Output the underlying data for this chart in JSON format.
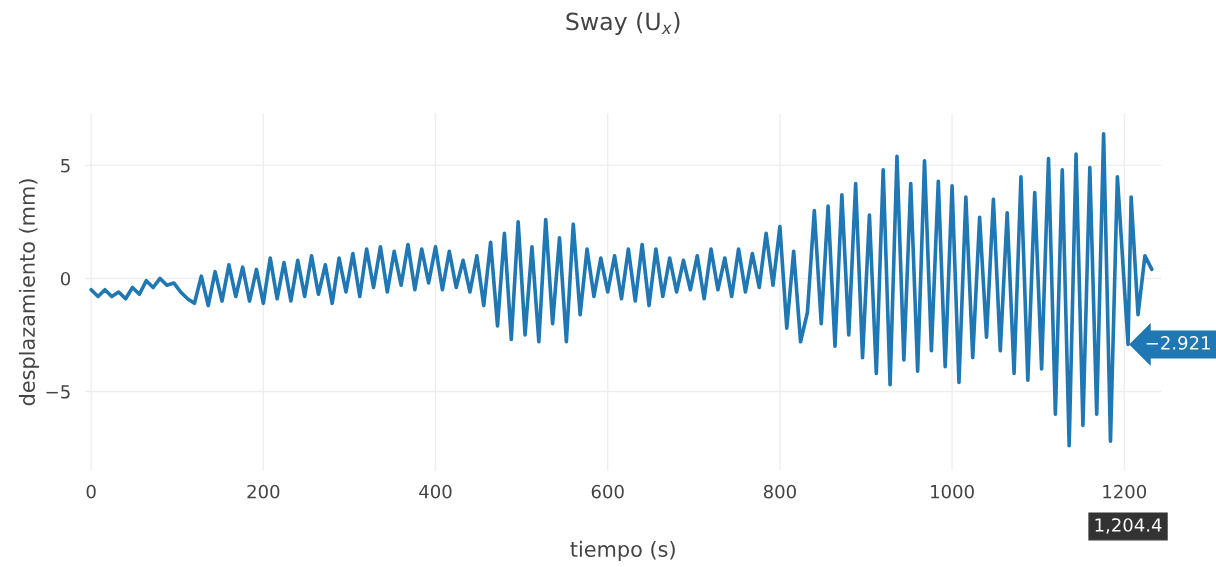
{
  "chart_data": {
    "type": "line",
    "title": "Sway (U$_{x}$)",
    "xlabel": "tiempo (s)",
    "ylabel": "desplazamiento (mm)",
    "x": [
      0,
      8,
      16,
      24,
      32,
      40,
      48,
      56,
      64,
      72,
      80,
      88,
      96,
      104,
      112,
      120,
      128,
      136,
      144,
      152,
      160,
      168,
      176,
      184,
      192,
      200,
      208,
      216,
      224,
      232,
      240,
      248,
      256,
      264,
      272,
      280,
      288,
      296,
      304,
      312,
      320,
      328,
      336,
      344,
      352,
      360,
      368,
      376,
      384,
      392,
      400,
      408,
      416,
      424,
      432,
      440,
      448,
      456,
      464,
      472,
      480,
      488,
      496,
      504,
      512,
      520,
      528,
      536,
      544,
      552,
      560,
      568,
      576,
      584,
      592,
      600,
      608,
      616,
      624,
      632,
      640,
      648,
      656,
      664,
      672,
      680,
      688,
      696,
      704,
      712,
      720,
      728,
      736,
      744,
      752,
      760,
      768,
      776,
      784,
      792,
      800,
      808,
      816,
      824,
      832,
      840,
      848,
      856,
      864,
      872,
      880,
      888,
      896,
      904,
      912,
      920,
      928,
      936,
      944,
      952,
      960,
      968,
      976,
      984,
      992,
      1000,
      1008,
      1016,
      1024,
      1032,
      1040,
      1048,
      1056,
      1064,
      1072,
      1080,
      1088,
      1096,
      1104,
      1112,
      1120,
      1128,
      1136,
      1144,
      1152,
      1160,
      1168,
      1176,
      1184,
      1192,
      1204.4,
      1208,
      1216,
      1224,
      1232
    ],
    "series": [
      {
        "color": "#1f77b4",
        "values": [
          -0.5,
          -0.8,
          -0.5,
          -0.8,
          -0.6,
          -0.9,
          -0.4,
          -0.7,
          -0.1,
          -0.4,
          0.0,
          -0.3,
          -0.2,
          -0.6,
          -0.9,
          -1.1,
          0.1,
          -1.2,
          0.3,
          -1.0,
          0.6,
          -0.8,
          0.5,
          -1.0,
          0.4,
          -1.1,
          0.9,
          -0.9,
          0.7,
          -1.0,
          0.8,
          -0.8,
          1.0,
          -0.7,
          0.6,
          -1.1,
          0.9,
          -0.6,
          1.1,
          -0.8,
          1.3,
          -0.4,
          1.4,
          -0.6,
          1.2,
          -0.3,
          1.5,
          -0.5,
          1.3,
          -0.2,
          1.4,
          -0.5,
          1.2,
          -0.4,
          0.8,
          -0.6,
          1.0,
          -1.2,
          1.6,
          -2.1,
          2.0,
          -2.7,
          2.5,
          -2.5,
          1.4,
          -2.8,
          2.6,
          -2.0,
          1.8,
          -2.8,
          2.4,
          -1.6,
          1.3,
          -0.8,
          0.9,
          -0.6,
          1.0,
          -0.9,
          1.3,
          -1.0,
          1.5,
          -1.2,
          1.3,
          -0.8,
          0.9,
          -0.6,
          0.8,
          -0.5,
          1.0,
          -0.9,
          1.3,
          -0.5,
          0.9,
          -0.8,
          1.3,
          -0.6,
          1.1,
          -0.4,
          2.0,
          -0.3,
          2.3,
          -2.2,
          1.2,
          -2.8,
          -1.5,
          3.0,
          -2.0,
          3.2,
          -3.0,
          3.7,
          -2.5,
          4.2,
          -3.5,
          2.8,
          -4.2,
          4.8,
          -4.7,
          5.4,
          -3.6,
          4.2,
          -4.1,
          5.2,
          -3.2,
          4.3,
          -3.9,
          4.1,
          -4.6,
          3.6,
          -3.5,
          2.7,
          -2.6,
          3.5,
          -3.2,
          2.9,
          -4.2,
          4.5,
          -4.5,
          3.8,
          -4.0,
          5.3,
          -6.0,
          4.8,
          -7.4,
          5.5,
          -6.5,
          4.9,
          -6.0,
          6.4,
          -7.2,
          4.5,
          -2.921,
          3.6,
          -1.6,
          1.0,
          0.4
        ]
      }
    ],
    "xlim": [
      -7,
      1243
    ],
    "ylim": [
      -8.5,
      7.3
    ],
    "xticks": [
      0,
      200,
      400,
      600,
      800,
      1000,
      1200
    ],
    "yticks": [
      {
        "value": -5,
        "label": "−5"
      },
      0,
      5
    ],
    "grid": true,
    "legend": false,
    "annotations": [
      {
        "text": "−2.921",
        "x": 1204.4,
        "y": -2.921
      },
      "1,204.4"
    ]
  }
}
